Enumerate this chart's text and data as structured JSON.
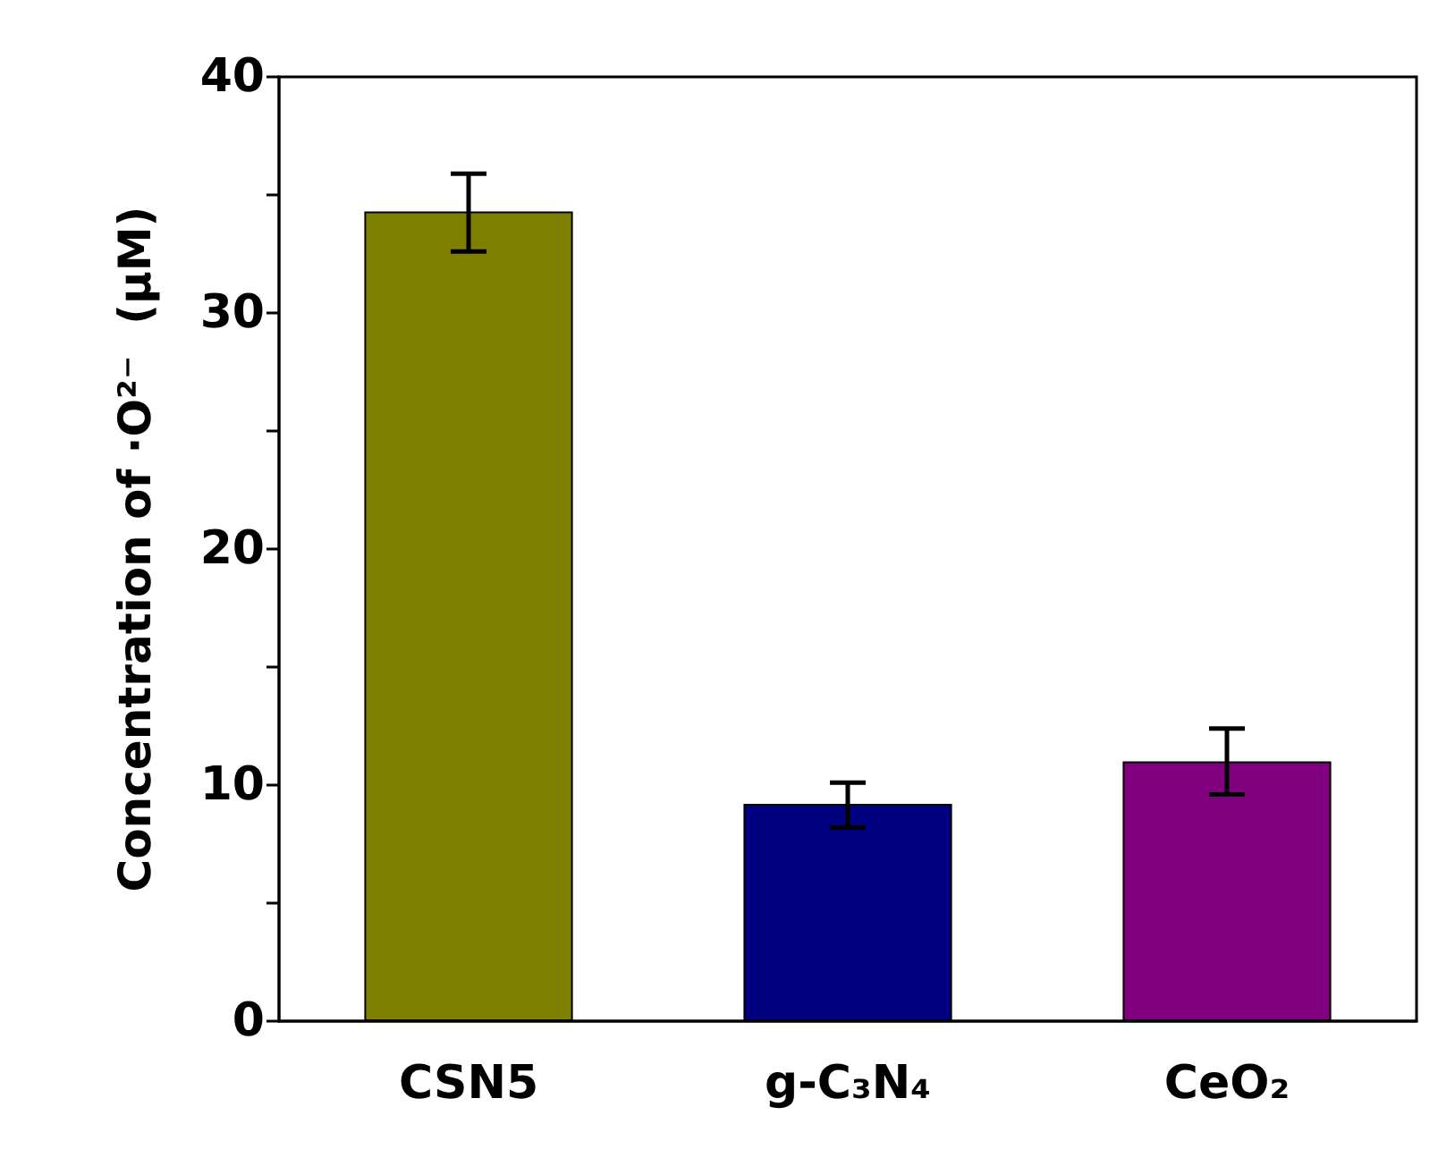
{
  "chart_data": {
    "type": "bar",
    "ylabel": "Concentration of ·O²⁻  (μM)",
    "categories": [
      "CSN5",
      "g-C₃N₄",
      "CeO₂"
    ],
    "values": [
      34.3,
      9.2,
      11.0
    ],
    "colors": [
      "#808000",
      "#000080",
      "#800080"
    ],
    "errors": [
      [
        32.6,
        35.9
      ],
      [
        8.2,
        10.1
      ],
      [
        9.6,
        12.4
      ]
    ],
    "ylim": [
      0,
      40
    ],
    "yticks": [
      0,
      {
        "value": 5,
        "label": null
      },
      10,
      {
        "value": 15,
        "label": null
      },
      20,
      {
        "value": 25,
        "label": null
      },
      30,
      {
        "value": 35,
        "label": null
      },
      40
    ],
    "grid": false
  }
}
